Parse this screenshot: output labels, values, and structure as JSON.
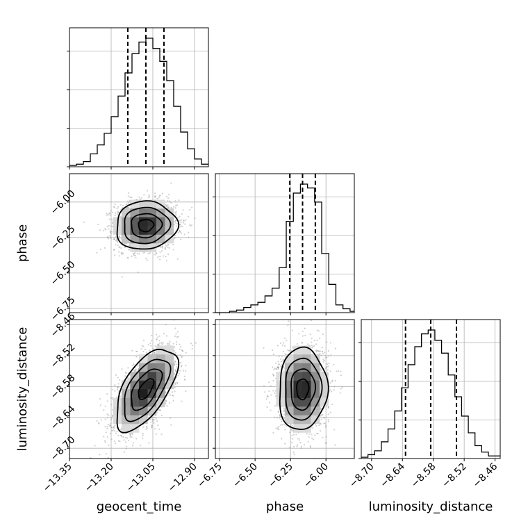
{
  "colors": {
    "line": "#000000",
    "grid": "#b0b0b0",
    "scatter": "#9a9a9a",
    "background": "#ffffff"
  },
  "chart_data": {
    "type": "corner",
    "parameters": [
      {
        "name": "geocent_time",
        "label": "geocent_time",
        "range": [
          -13.35,
          -12.85
        ],
        "ticks": [
          -13.35,
          -13.2,
          -13.05,
          -12.9
        ],
        "tick_labels": [
          "−13.35",
          "−13.20",
          "−13.05",
          "−12.90"
        ],
        "quantiles": [
          -13.14,
          -13.075,
          -13.01
        ]
      },
      {
        "name": "phase",
        "label": "phase",
        "range": [
          -6.78,
          -5.8
        ],
        "ticks": [
          -6.75,
          -6.5,
          -6.25,
          -6.0
        ],
        "tick_labels": [
          "−6.75",
          "−6.50",
          "−6.25",
          "−6.00"
        ],
        "quantiles": [
          -6.255,
          -6.165,
          -6.075
        ]
      },
      {
        "name": "luminosity_distance",
        "label": "luminosity_distance",
        "range": [
          -8.72,
          -8.45
        ],
        "ticks": [
          -8.7,
          -8.64,
          -8.58,
          -8.52,
          -8.46
        ],
        "tick_labels": [
          "−8.70",
          "−8.64",
          "−8.58",
          "−8.52",
          "−8.46"
        ],
        "quantiles": [
          -8.634,
          -8.585,
          -8.535
        ]
      }
    ],
    "histograms": [
      {
        "parameter": "geocent_time",
        "bin_edges": [
          -13.35,
          -13.325,
          -13.3,
          -13.275,
          -13.25,
          -13.225,
          -13.2,
          -13.175,
          -13.15,
          -13.125,
          -13.1,
          -13.075,
          -13.05,
          -13.025,
          -13.0,
          -12.975,
          -12.95,
          -12.925,
          -12.9,
          -12.875,
          -12.85
        ],
        "counts": [
          0.01,
          0.02,
          0.04,
          0.1,
          0.17,
          0.26,
          0.39,
          0.55,
          0.73,
          0.88,
          0.97,
          1.0,
          0.92,
          0.82,
          0.67,
          0.47,
          0.27,
          0.14,
          0.06,
          0.02
        ]
      },
      {
        "parameter": "phase",
        "bin_edges": [
          -6.78,
          -6.73,
          -6.68,
          -6.63,
          -6.58,
          -6.53,
          -6.48,
          -6.43,
          -6.38,
          -6.33,
          -6.28,
          -6.23,
          -6.18,
          -6.13,
          -6.08,
          -6.03,
          -5.98,
          -5.93,
          -5.88,
          -5.83,
          -5.8
        ],
        "counts": [
          0.0,
          0.0,
          0.01,
          0.02,
          0.04,
          0.06,
          0.08,
          0.13,
          0.19,
          0.35,
          0.71,
          0.93,
          1.0,
          0.97,
          0.86,
          0.46,
          0.22,
          0.06,
          0.03,
          0.01
        ]
      },
      {
        "parameter": "luminosity_distance",
        "bin_edges": [
          -8.72,
          -8.707,
          -8.694,
          -8.681,
          -8.668,
          -8.655,
          -8.642,
          -8.629,
          -8.616,
          -8.603,
          -8.59,
          -8.577,
          -8.564,
          -8.551,
          -8.538,
          -8.525,
          -8.512,
          -8.499,
          -8.486,
          -8.473,
          -8.45
        ],
        "counts": [
          0.01,
          0.03,
          0.06,
          0.13,
          0.23,
          0.37,
          0.55,
          0.73,
          0.87,
          0.97,
          1.0,
          0.92,
          0.82,
          0.65,
          0.48,
          0.33,
          0.2,
          0.1,
          0.05,
          0.02
        ]
      }
    ],
    "pairs": [
      {
        "x": "geocent_time",
        "y": "phase",
        "mean": [
          -13.075,
          -6.165
        ],
        "sigma": [
          0.055,
          0.085
        ],
        "correlation": 0.05
      },
      {
        "x": "geocent_time",
        "y": "luminosity_distance",
        "mean": [
          -13.075,
          -8.585
        ],
        "sigma": [
          0.055,
          0.04
        ],
        "correlation": 0.6
      },
      {
        "x": "phase",
        "y": "luminosity_distance",
        "mean": [
          -6.165,
          -8.585
        ],
        "sigma": [
          0.085,
          0.04
        ],
        "correlation": 0.05
      }
    ],
    "contour_levels_sigma": [
      0.5,
      1.0,
      1.5,
      2.0
    ],
    "grid": true,
    "quantile_line_style": "dashed"
  }
}
